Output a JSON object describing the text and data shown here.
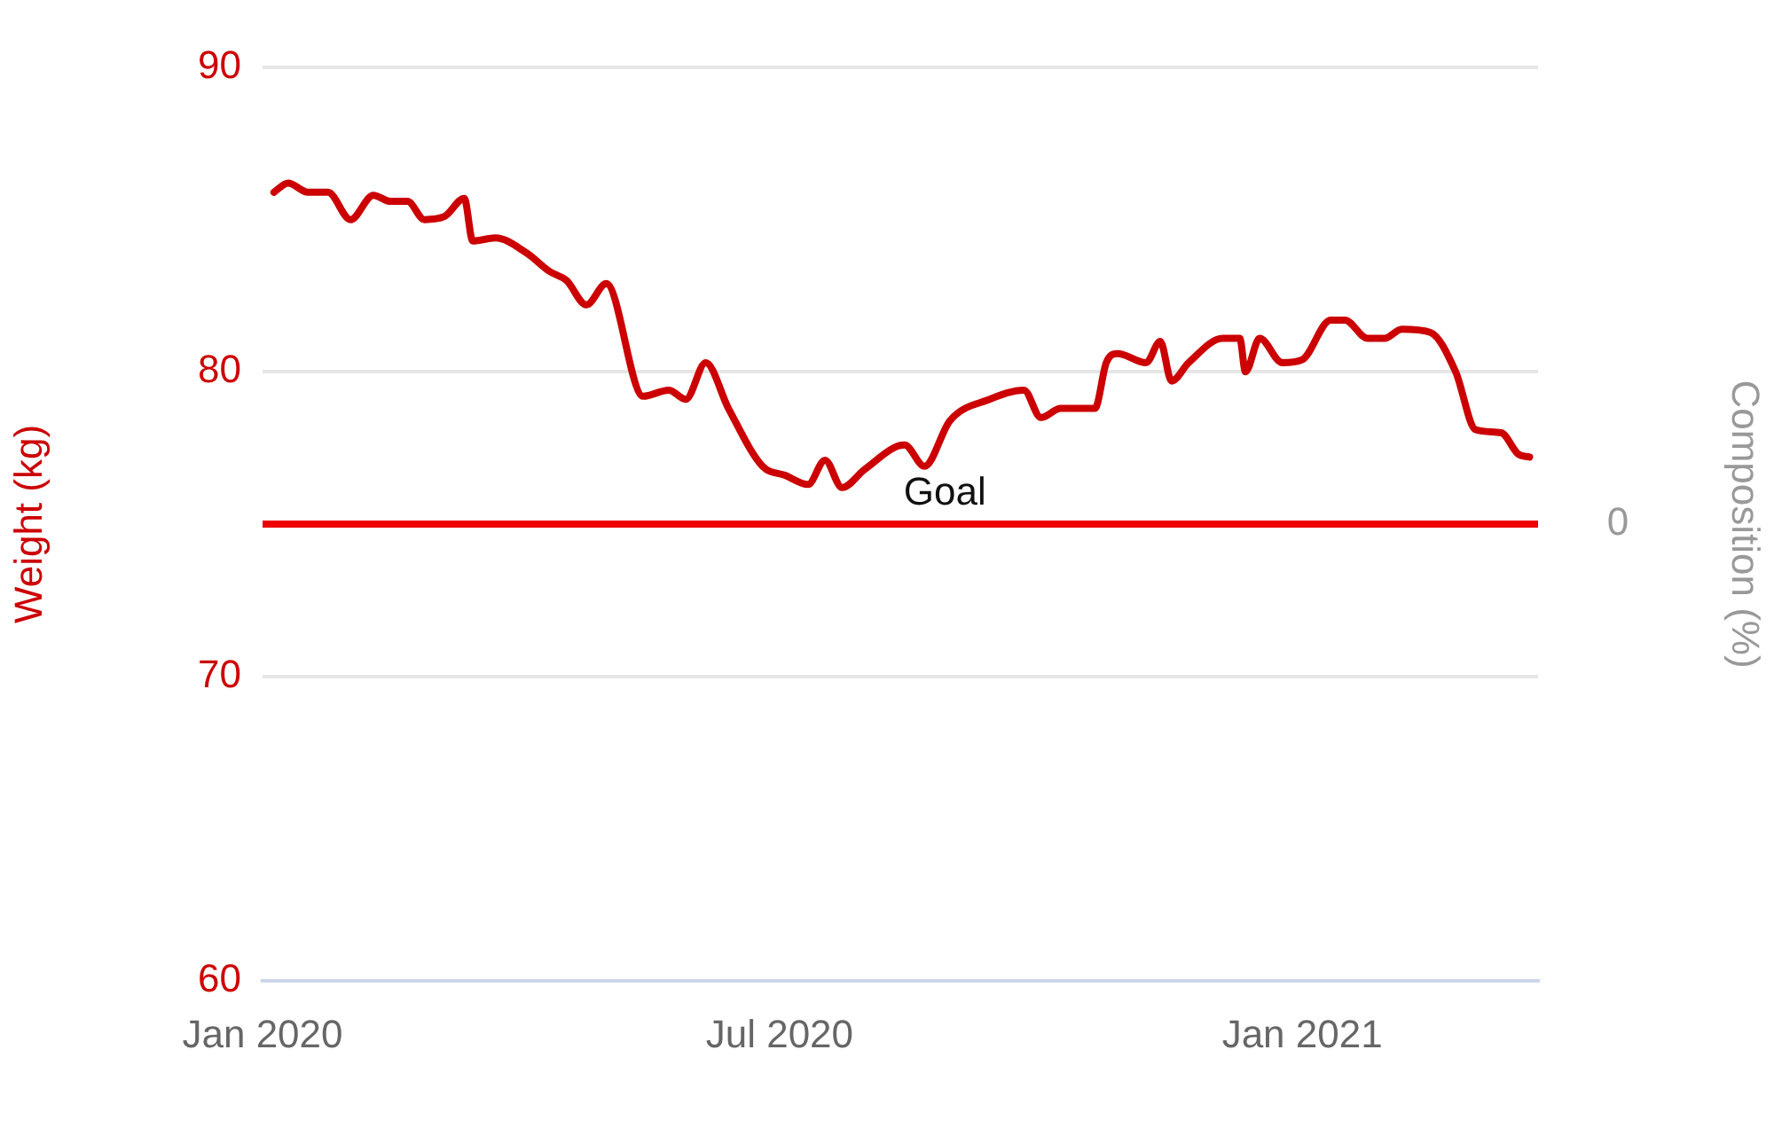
{
  "chart_data": {
    "type": "line",
    "xlabel": null,
    "ylabel": "Weight (kg)",
    "y2label": "Composition (%)",
    "x": [
      "2020-01-05",
      "2020-01-10",
      "2020-01-17",
      "2020-01-24",
      "2020-02-01",
      "2020-02-09",
      "2020-02-15",
      "2020-02-21",
      "2020-02-27",
      "2020-03-05",
      "2020-03-12",
      "2020-03-15",
      "2020-03-23",
      "2020-04-03",
      "2020-04-11",
      "2020-04-17",
      "2020-04-24",
      "2020-05-01",
      "2020-05-14",
      "2020-05-23",
      "2020-05-29",
      "2020-06-05",
      "2020-06-13",
      "2020-06-25",
      "2020-07-03",
      "2020-07-11",
      "2020-07-17",
      "2020-07-23",
      "2020-07-31",
      "2020-08-14",
      "2020-08-21",
      "2020-08-30",
      "2020-09-13",
      "2020-09-25",
      "2020-10-01",
      "2020-10-08",
      "2020-10-20",
      "2020-10-24",
      "2020-10-28",
      "2020-11-07",
      "2020-11-12",
      "2020-11-16",
      "2020-11-22",
      "2020-12-04",
      "2020-12-10",
      "2020-12-12",
      "2020-12-17",
      "2020-12-25",
      "2021-01-01",
      "2021-01-11",
      "2021-01-16",
      "2021-01-24",
      "2021-01-30",
      "2021-02-05",
      "2021-02-15",
      "2021-02-24",
      "2021-03-03",
      "2021-03-12",
      "2021-03-18",
      "2021-03-22"
    ],
    "series": [
      {
        "color": "#cc0000",
        "values": [
          85.9,
          86.2,
          85.9,
          85.9,
          85.0,
          85.8,
          85.6,
          85.6,
          85.0,
          85.1,
          85.7,
          84.3,
          84.4,
          83.9,
          83.3,
          83.0,
          82.2,
          82.9,
          79.2,
          79.4,
          79.1,
          80.3,
          78.8,
          76.9,
          76.6,
          76.3,
          77.1,
          76.2,
          76.8,
          77.6,
          76.9,
          78.4,
          79.1,
          79.4,
          78.5,
          78.8,
          78.8,
          80.3,
          80.6,
          80.3,
          81.0,
          79.7,
          80.3,
          81.1,
          81.1,
          80.0,
          81.1,
          80.3,
          80.4,
          81.7,
          81.7,
          81.1,
          81.1,
          81.4,
          81.3,
          80.0,
          78.1,
          78.0,
          77.3,
          77.2
        ]
      }
    ],
    "xlim": [
      "2020-01-01",
      "2021-03-25"
    ],
    "xticks": [
      {
        "value": "2020-01-01",
        "label": "Jan 2020"
      },
      {
        "value": "2020-07-01",
        "label": "Jul 2020"
      },
      {
        "value": "2021-01-01",
        "label": "Jan 2021"
      }
    ],
    "ylim": [
      60,
      90
    ],
    "yticks": [
      60,
      70,
      80,
      90
    ],
    "annotations": [
      "0"
    ],
    "ref_lines": [
      {
        "axis": "y",
        "value": 75,
        "label": "Goal",
        "color": "#ee0000"
      }
    ],
    "grid": "y",
    "legend": false,
    "marker": "none",
    "line_style": "solid"
  }
}
